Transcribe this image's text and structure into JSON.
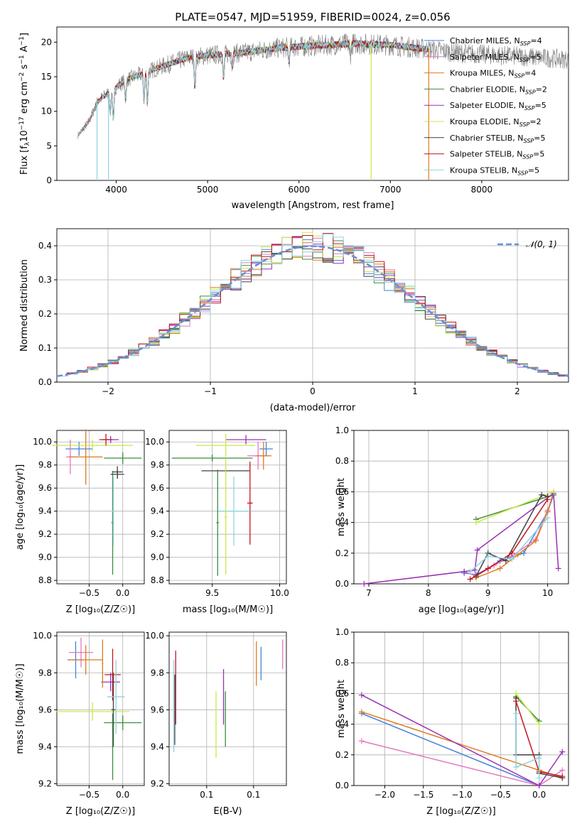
{
  "title": "PLATE=0547, MJD=51959, FIBERID=0024, z=0.056",
  "models": [
    {
      "label": "Chabrier MILES, N",
      "sub": "SSP",
      "eq": "=4",
      "color": "#4682d8"
    },
    {
      "label": "Salpeter MILES, N",
      "sub": "SSP",
      "eq": "=5",
      "color": "#e377c2"
    },
    {
      "label": "Kroupa MILES, N",
      "sub": "SSP",
      "eq": "=4",
      "color": "#e07a1f"
    },
    {
      "label": "Chabrier ELODIE, N",
      "sub": "SSP",
      "eq": "=2",
      "color": "#3c8d3c"
    },
    {
      "label": "Salpeter ELODIE, N",
      "sub": "SSP",
      "eq": "=5",
      "color": "#9b30b5"
    },
    {
      "label": "Kroupa ELODIE, N",
      "sub": "SSP",
      "eq": "=2",
      "color": "#c9e84a"
    },
    {
      "label": "Chabrier STELIB, N",
      "sub": "SSP",
      "eq": "=5",
      "color": "#404040"
    },
    {
      "label": "Salpeter STELIB, N",
      "sub": "SSP",
      "eq": "=5",
      "color": "#c0171e"
    },
    {
      "label": "Kroupa STELIB, N",
      "sub": "SSP",
      "eq": "=5",
      "color": "#8ed4e0"
    }
  ],
  "chart_data": [
    {
      "id": "spectrum",
      "type": "line",
      "xlabel": "wavelength [Angstrom, rest frame]",
      "ylabel_parts": [
        "Flux [f",
        "λ",
        "10",
        "−17",
        " erg cm",
        "−2",
        " s",
        "−1",
        " A",
        "−1",
        "]"
      ],
      "xlim": [
        3350,
        8950
      ],
      "ylim": [
        0,
        22.2
      ],
      "xticks": [
        4000,
        5000,
        6000,
        7000,
        8000
      ],
      "yticks": [
        0,
        5,
        10,
        15,
        20
      ],
      "continuum": [
        [
          3580,
          6.5
        ],
        [
          3700,
          8.5
        ],
        [
          3800,
          11.5
        ],
        [
          3900,
          12.5
        ],
        [
          4000,
          13.5
        ],
        [
          4100,
          14.5
        ],
        [
          4300,
          15.5
        ],
        [
          4500,
          16.5
        ],
        [
          4800,
          17.8
        ],
        [
          5100,
          18.2
        ],
        [
          5400,
          18.5
        ],
        [
          5800,
          19.2
        ],
        [
          6200,
          19.5
        ],
        [
          6600,
          19.8
        ],
        [
          7000,
          19.6
        ],
        [
          7400,
          19.0
        ],
        [
          7800,
          18.4
        ],
        [
          8200,
          18.1
        ],
        [
          8600,
          17.8
        ],
        [
          8950,
          17.5
        ]
      ],
      "model_end": 7420,
      "absorption_lines": [
        [
          3934,
          0.25
        ],
        [
          3968,
          0.35
        ],
        [
          4102,
          0.2
        ],
        [
          4304,
          0.25
        ],
        [
          4341,
          0.3
        ],
        [
          4861,
          0.25
        ],
        [
          5175,
          0.2
        ],
        [
          5270,
          0.1
        ],
        [
          5890,
          0.12
        ],
        [
          6563,
          0.08
        ]
      ]
    },
    {
      "id": "residuals",
      "type": "bar",
      "xlabel": "(data-model)/error",
      "ylabel": "Normed distribution",
      "legend": "𝒩(0, 1)",
      "xlim": [
        -2.5,
        2.5
      ],
      "ylim": [
        0,
        0.45
      ],
      "xticks": [
        -2,
        -1,
        0,
        1,
        2
      ],
      "yticks": [
        0,
        0.1,
        0.2,
        0.3,
        0.4
      ],
      "bin_width": 0.1
    },
    {
      "id": "age-vs-Z",
      "type": "scatter",
      "xlabel": "Z [log₁₀(Z/Z☉)]",
      "ylabel": "age  [log₁₀(age/yr)]",
      "xlim": [
        -0.98,
        0.32
      ],
      "ylim": [
        8.77,
        10.1
      ],
      "xticks": [
        -0.5,
        0.0
      ],
      "yticks": [
        8.8,
        9.0,
        9.2,
        9.4,
        9.6,
        9.8,
        10.0
      ],
      "points": [
        {
          "m": 0,
          "x": -0.65,
          "y": 9.94,
          "xe": 0.2,
          "ye": 0.06
        },
        {
          "m": 1,
          "x": -0.78,
          "y": 9.87,
          "xe": 0.06,
          "ye": 0.15
        },
        {
          "m": 2,
          "x": -0.55,
          "y": 9.87,
          "xe": 0.25,
          "ye": 0.24
        },
        {
          "m": 3,
          "x": 0.0,
          "y": 9.86,
          "xe": 0.28,
          "ye": 0.05
        },
        {
          "m": 4,
          "x": -0.18,
          "y": 10.02,
          "xe": 0.12,
          "ye": 0.03
        },
        {
          "m": 5,
          "x": -0.45,
          "y": 9.97,
          "xe": 0.6,
          "ye": 0.05
        },
        {
          "m": 6,
          "x": -0.08,
          "y": 9.74,
          "xe": 0.08,
          "ye": 0.05
        },
        {
          "m": 7,
          "x": -0.25,
          "y": 10.02,
          "xe": 0.1,
          "ye": 0.05
        },
        {
          "m": 3,
          "x": -0.15,
          "y": 9.3,
          "xe": 0.02,
          "ye": 0.45
        },
        {
          "m": 6,
          "x": -0.08,
          "y": 9.72,
          "xe": 0.1,
          "ye": 0.04
        },
        {
          "m": 8,
          "x": -0.14,
          "y": 9.4,
          "xe": 0.03,
          "ye": 0.3
        }
      ]
    },
    {
      "id": "age-vs-mass",
      "type": "scatter",
      "xlabel": "mass [log₁₀(M/M☉)]",
      "xlim": [
        9.18,
        10.05
      ],
      "ylim": [
        8.77,
        10.1
      ],
      "xticks": [
        9.5,
        10.0
      ],
      "yticks": [
        8.8,
        9.0,
        9.2,
        9.4,
        9.6,
        9.8,
        10.0
      ],
      "points": [
        {
          "m": 0,
          "x": 9.9,
          "y": 9.94,
          "xe": 0.05,
          "ye": 0.06
        },
        {
          "m": 1,
          "x": 9.84,
          "y": 9.88,
          "xe": 0.08,
          "ye": 0.12
        },
        {
          "m": 2,
          "x": 9.88,
          "y": 9.88,
          "xe": 0.06,
          "ye": 0.12
        },
        {
          "m": 3,
          "x": 9.5,
          "y": 9.86,
          "xe": 0.3,
          "ye": 0.03
        },
        {
          "m": 4,
          "x": 9.75,
          "y": 10.02,
          "xe": 0.15,
          "ye": 0.04
        },
        {
          "m": 5,
          "x": 9.6,
          "y": 9.97,
          "xe": 0.22,
          "ye": 0.1
        },
        {
          "m": 6,
          "x": 9.6,
          "y": 9.75,
          "xe": 0.18,
          "ye": 0.02
        },
        {
          "m": 7,
          "x": 9.78,
          "y": 9.47,
          "xe": 0.02,
          "ye": 0.36
        },
        {
          "m": 8,
          "x": 9.66,
          "y": 9.4,
          "xe": 0.12,
          "ye": 0.3
        },
        {
          "m": 3,
          "x": 9.54,
          "y": 9.3,
          "xe": 0.01,
          "ye": 0.46
        },
        {
          "m": 5,
          "x": 9.6,
          "y": 9.35,
          "xe": 0.01,
          "ye": 0.5
        }
      ]
    },
    {
      "id": "weight-vs-age",
      "type": "line",
      "xlabel": "age  [log₁₀(age/yr)]",
      "ylabel": "mass weight",
      "xlim": [
        6.75,
        10.35
      ],
      "ylim": [
        0,
        1.0
      ],
      "xticks": [
        7,
        8,
        9,
        10
      ],
      "yticks": [
        0.0,
        0.2,
        0.4,
        0.6,
        0.8,
        1.0
      ],
      "series": [
        {
          "m": 0,
          "x": [
            8.6,
            8.8,
            9.0,
            9.2,
            9.6,
            10.0,
            10.1
          ],
          "y": [
            0.07,
            0.06,
            0.1,
            0.15,
            0.2,
            0.47,
            0.58
          ]
        },
        {
          "m": 1,
          "x": [
            8.6,
            8.8,
            9.1,
            9.4,
            9.8,
            10.0
          ],
          "y": [
            0.08,
            0.05,
            0.12,
            0.18,
            0.29,
            0.48
          ]
        },
        {
          "m": 2,
          "x": [
            8.8,
            9.2,
            9.5,
            9.8,
            10.0,
            10.1
          ],
          "y": [
            0.04,
            0.1,
            0.19,
            0.28,
            0.47,
            0.6
          ]
        },
        {
          "m": 3,
          "x": [
            8.8,
            10.1
          ],
          "y": [
            0.42,
            0.58
          ]
        },
        {
          "m": 4,
          "x": [
            6.92,
            8.6,
            8.78,
            8.82,
            10.1,
            10.18
          ],
          "y": [
            0.0,
            0.08,
            0.09,
            0.22,
            0.59,
            0.1
          ]
        },
        {
          "m": 5,
          "x": [
            8.8,
            10.1
          ],
          "y": [
            0.4,
            0.6
          ]
        },
        {
          "m": 6,
          "x": [
            8.8,
            9.0,
            9.3,
            9.9,
            10.0
          ],
          "y": [
            0.05,
            0.2,
            0.15,
            0.58,
            0.57
          ]
        },
        {
          "m": 7,
          "x": [
            8.7,
            9.0,
            9.4,
            10.0
          ],
          "y": [
            0.03,
            0.1,
            0.2,
            0.55
          ]
        },
        {
          "m": 8,
          "x": [
            8.7,
            9.0,
            9.4,
            10.0
          ],
          "y": [
            0.08,
            0.18,
            0.16,
            0.43
          ]
        }
      ]
    },
    {
      "id": "mass-vs-Z",
      "type": "scatter",
      "xlabel": "Z [log₁₀(Z/Z☉)]",
      "ylabel": "mass [log₁₀(M/M☉)]",
      "xlim": [
        -0.98,
        0.32
      ],
      "ylim": [
        9.19,
        10.02
      ],
      "xticks": [
        -0.5,
        0.0
      ],
      "yticks": [
        9.2,
        9.4,
        9.6,
        9.8,
        10.0
      ],
      "points": [
        {
          "m": 0,
          "x": -0.7,
          "y": 9.87,
          "xe": 0.12,
          "ye": 0.1
        },
        {
          "m": 1,
          "x": -0.62,
          "y": 9.91,
          "xe": 0.18,
          "ye": 0.08
        },
        {
          "m": 2,
          "x": -0.55,
          "y": 9.87,
          "xe": 0.26,
          "ye": 0.08
        },
        {
          "m": 3,
          "x": 0.0,
          "y": 9.53,
          "xe": 0.28,
          "ye": 0.04
        },
        {
          "m": 4,
          "x": -0.18,
          "y": 9.75,
          "xe": 0.14,
          "ye": 0.05
        },
        {
          "m": 5,
          "x": -0.45,
          "y": 9.59,
          "xe": 0.55,
          "ye": 0.05
        },
        {
          "m": 6,
          "x": -0.14,
          "y": 9.6,
          "xe": 0.03,
          "ye": 0.2
        },
        {
          "m": 7,
          "x": -0.15,
          "y": 9.79,
          "xe": 0.12,
          "ye": 0.14
        },
        {
          "m": 8,
          "x": -0.1,
          "y": 9.67,
          "xe": 0.13,
          "ye": 0.2
        },
        {
          "m": 3,
          "x": -0.15,
          "y": 9.4,
          "xe": 0.01,
          "ye": 0.18
        },
        {
          "m": 2,
          "x": -0.3,
          "y": 9.85,
          "xe": 0.01,
          "ye": 0.13
        }
      ]
    },
    {
      "id": "mass-vs-ebv",
      "type": "scatter",
      "xlabel": "E(B-V)",
      "xlim": [
        0.06,
        0.185
      ],
      "ylim": [
        9.19,
        10.02
      ],
      "xticks": [
        0.1,
        0.15
      ],
      "yticks": [
        9.2,
        9.4,
        9.6,
        9.8,
        10.0
      ],
      "points": [
        {
          "m": 7,
          "x": 0.067,
          "y": 9.72,
          "xe": 0.0,
          "ye": 0.2
        },
        {
          "m": 6,
          "x": 0.066,
          "y": 9.6,
          "xe": 0.0,
          "ye": 0.19
        },
        {
          "m": 8,
          "x": 0.065,
          "y": 9.62,
          "xe": 0.0,
          "ye": 0.25
        },
        {
          "m": 5,
          "x": 0.11,
          "y": 9.52,
          "xe": 0.0,
          "ye": 0.18
        },
        {
          "m": 3,
          "x": 0.12,
          "y": 9.55,
          "xe": 0.0,
          "ye": 0.15
        },
        {
          "m": 4,
          "x": 0.118,
          "y": 9.67,
          "xe": 0.0,
          "ye": 0.15
        },
        {
          "m": 2,
          "x": 0.153,
          "y": 9.85,
          "xe": 0.0,
          "ye": 0.12
        },
        {
          "m": 0,
          "x": 0.158,
          "y": 9.85,
          "xe": 0.0,
          "ye": 0.09
        },
        {
          "m": 1,
          "x": 0.181,
          "y": 9.9,
          "xe": 0.0,
          "ye": 0.08
        }
      ]
    },
    {
      "id": "weight-vs-Z",
      "type": "line",
      "xlabel": "Z [log₁₀(Z/Z☉)]",
      "ylabel": "mass weight",
      "xlim": [
        -2.4,
        0.38
      ],
      "ylim": [
        0,
        1.0
      ],
      "xticks": [
        -2.0,
        -1.5,
        -1.0,
        -0.5,
        0.0
      ],
      "yticks": [
        0.0,
        0.2,
        0.4,
        0.6,
        0.8,
        1.0
      ],
      "series": [
        {
          "m": 0,
          "x": [
            -2.3,
            0.0
          ],
          "y": [
            0.47,
            0.0
          ]
        },
        {
          "m": 1,
          "x": [
            -2.3,
            0.0,
            0.3
          ],
          "y": [
            0.29,
            0.0,
            0.1
          ]
        },
        {
          "m": 2,
          "x": [
            -2.3,
            0.0,
            0.3
          ],
          "y": [
            0.48,
            0.1,
            0.05
          ]
        },
        {
          "m": 3,
          "x": [
            -0.3,
            0.0
          ],
          "y": [
            0.58,
            0.42
          ]
        },
        {
          "m": 4,
          "x": [
            -2.3,
            0.0,
            0.3
          ],
          "y": [
            0.59,
            0.0,
            0.22
          ]
        },
        {
          "m": 5,
          "x": [
            -0.3,
            0.0
          ],
          "y": [
            0.6,
            0.4
          ]
        },
        {
          "m": 6,
          "x": [
            -0.3,
            -0.3,
            0.0,
            0.0,
            0.3
          ],
          "y": [
            0.57,
            0.2,
            0.2,
            0.08,
            0.05
          ]
        },
        {
          "m": 7,
          "x": [
            -0.3,
            0.0,
            0.3
          ],
          "y": [
            0.55,
            0.09,
            0.06
          ]
        },
        {
          "m": 8,
          "x": [
            -0.3,
            -0.3,
            0.0,
            0.0
          ],
          "y": [
            0.47,
            0.12,
            0.18,
            0.05
          ]
        }
      ]
    }
  ]
}
